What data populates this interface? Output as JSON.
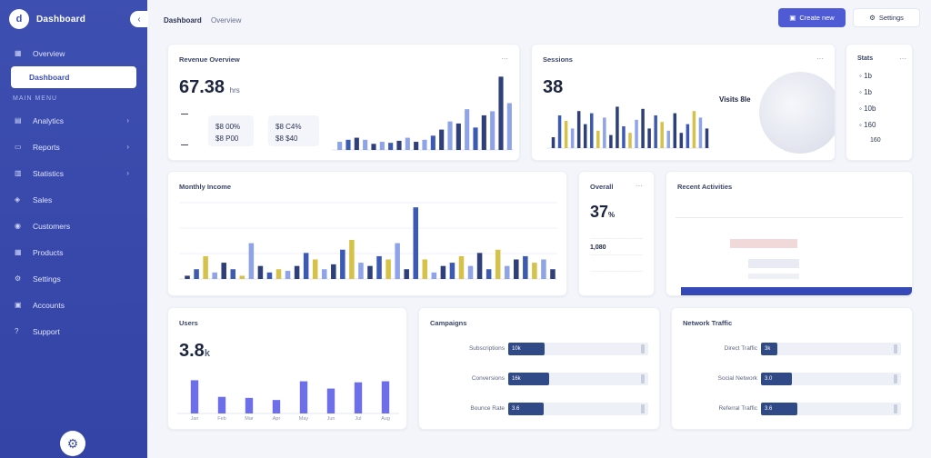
{
  "sidebar": {
    "brand_name": "Dashboard",
    "items": [
      {
        "label": "Overview",
        "icon": "grid-icon"
      },
      {
        "label": "Dashboard",
        "icon": "home-icon",
        "active": true
      }
    ],
    "section_label": "MAIN MENU",
    "menu": [
      {
        "label": "Analytics",
        "icon": "chart-icon"
      },
      {
        "label": "Reports",
        "icon": "file-icon"
      },
      {
        "label": "Statistics",
        "icon": "bar-icon"
      },
      {
        "label": "Sales",
        "icon": "tag-icon"
      },
      {
        "label": "Customers",
        "icon": "user-icon"
      },
      {
        "label": "Products",
        "icon": "box-icon"
      },
      {
        "label": "Settings",
        "icon": "gear-icon"
      },
      {
        "label": "Accounts",
        "icon": "account-icon"
      },
      {
        "label": "Support",
        "icon": "help-icon"
      }
    ]
  },
  "topbar": {
    "breadcrumb": "Dashboard",
    "sub": "Overview",
    "primary_button": "Create new",
    "secondary_button": "Settings"
  },
  "cards": {
    "revenue": {
      "title": "Revenue Overview",
      "value": "67.38",
      "unit": "hrs",
      "box1_a": "$8",
      "box1_b": "00%",
      "box1_c": "$8",
      "box1_d": "P00",
      "box2_a": "$8",
      "box2_b": "C4%",
      "box2_c": "$8",
      "box2_d": "$40"
    },
    "sessions": {
      "title": "Sessions",
      "value": "38",
      "bubble": "Visits 8le"
    },
    "side_list": {
      "title": "Stats",
      "rows": [
        "1b",
        "1b",
        "10b",
        "160",
        "160"
      ]
    },
    "monthly": {
      "title": "Monthly Income"
    },
    "kpi": {
      "title": "Overall",
      "value": "37",
      "unit": "%",
      "rows": [
        "",
        "1,080",
        "",
        ""
      ]
    },
    "table": {
      "title": "Recent Activities"
    },
    "bottom_left": {
      "title": "Users",
      "value": "3.8",
      "unit": "k",
      "labels": [
        "Jan",
        "Feb",
        "Mar",
        "Apr",
        "May",
        "Jun",
        "Jul",
        "Aug"
      ]
    },
    "progress_a": {
      "title": "Campaigns",
      "rows": [
        {
          "label": "Subscriptions",
          "value": "10k",
          "percent": 26
        },
        {
          "label": "Conversions",
          "value": "16k",
          "percent": 29
        },
        {
          "label": "Bounce Rate",
          "value": "3.6",
          "percent": 25
        }
      ]
    },
    "progress_b": {
      "title": "Network Traffic",
      "rows": [
        {
          "label": "Direct Traffic",
          "value": "3k",
          "percent": 12
        },
        {
          "label": "Social Network",
          "value": "3.0",
          "percent": 22
        },
        {
          "label": "Referral Traffic",
          "value": "3.6",
          "percent": 26
        }
      ]
    }
  },
  "colors": {
    "accent": "#4f5bd5",
    "bar_blue": "#3d5ab3",
    "bar_navy": "#2f3f7a",
    "bar_yellow": "#d6c24a",
    "bar_light": "#8fa3e8"
  },
  "chart_data": [
    {
      "type": "bar",
      "title": "Revenue Overview",
      "categories": [
        "1",
        "2",
        "3",
        "4",
        "5",
        "6",
        "7",
        "8",
        "9",
        "10",
        "11",
        "12",
        "13",
        "14",
        "15",
        "16",
        "17",
        "18",
        "19",
        "20",
        "21"
      ],
      "series": [
        {
          "values": [
            8,
            10,
            12,
            10,
            6,
            8,
            7,
            9,
            12,
            8,
            10,
            14,
            20,
            28,
            26,
            40,
            22,
            34,
            38,
            72,
            46
          ]
        }
      ],
      "ylim": [
        0,
        75
      ]
    },
    {
      "type": "bar",
      "title": "Sessions",
      "categories": [
        "1",
        "2",
        "3",
        "4",
        "5",
        "6",
        "7",
        "8",
        "9",
        "10",
        "11",
        "12",
        "13",
        "14",
        "15",
        "16",
        "17",
        "18",
        "19",
        "20",
        "21",
        "22",
        "23",
        "24",
        "25"
      ],
      "series": [
        {
          "values": [
            10,
            30,
            25,
            18,
            34,
            22,
            32,
            16,
            28,
            12,
            38,
            20,
            14,
            26,
            36,
            18,
            30,
            24,
            16,
            32,
            14,
            22,
            34,
            28,
            18
          ]
        }
      ],
      "ylim": [
        0,
        40
      ]
    },
    {
      "type": "bar",
      "title": "Monthly Income",
      "categories": [
        "1",
        "2",
        "3",
        "4",
        "5",
        "6",
        "7",
        "8",
        "9",
        "10",
        "11",
        "12",
        "13",
        "14",
        "15",
        "16",
        "17",
        "18",
        "19",
        "20",
        "21",
        "22",
        "23",
        "24",
        "25",
        "26",
        "27",
        "28",
        "29",
        "30",
        "31",
        "32",
        "33",
        "34",
        "35",
        "36",
        "37",
        "38",
        "39",
        "40",
        "41"
      ],
      "series": [
        {
          "values": [
            2,
            6,
            14,
            4,
            10,
            6,
            2,
            22,
            8,
            4,
            6,
            5,
            8,
            16,
            12,
            6,
            9,
            18,
            24,
            10,
            8,
            14,
            12,
            22,
            6,
            44,
            12,
            4,
            8,
            10,
            14,
            8,
            16,
            6,
            18,
            8,
            12,
            14,
            10,
            12,
            6
          ]
        }
      ],
      "ylim": [
        0,
        48
      ]
    },
    {
      "type": "bar",
      "title": "Users",
      "categories": [
        "Jan",
        "Feb",
        "Mar",
        "Apr",
        "May",
        "Jun",
        "Jul",
        "Aug"
      ],
      "series": [
        {
          "values": [
            32,
            16,
            15,
            13,
            31,
            24,
            30,
            31
          ]
        }
      ],
      "ylim": [
        0,
        35
      ]
    }
  ]
}
